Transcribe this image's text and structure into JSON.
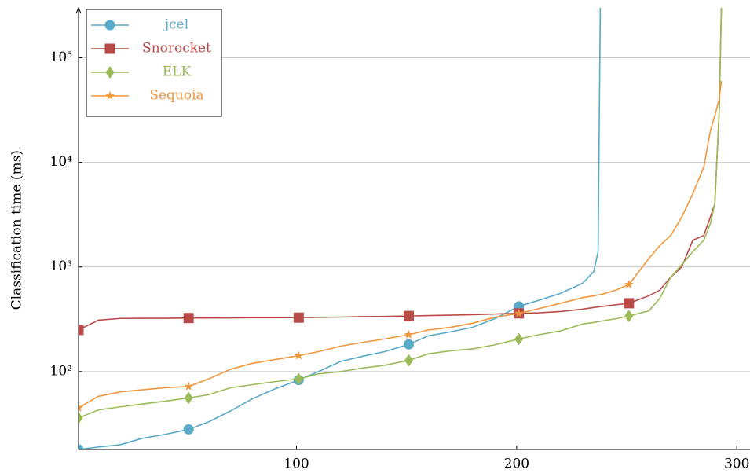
{
  "chart_data": {
    "type": "line",
    "ylabel": "Classification time (ms).",
    "log_y": true,
    "grid": true,
    "legend": "upper left",
    "xlim": [
      1,
      306
    ],
    "ylim": [
      18,
      300000
    ],
    "xticks": [
      100,
      200,
      300
    ],
    "yticks": [
      {
        "value": 100,
        "label": "10²"
      },
      {
        "value": 1000,
        "label": "10³"
      },
      {
        "value": 10000,
        "label": "10⁴"
      },
      {
        "value": 100000,
        "label": "10⁵"
      }
    ],
    "x": [
      1,
      10,
      20,
      30,
      40,
      51,
      60,
      70,
      80,
      90,
      101,
      110,
      120,
      130,
      140,
      151,
      160,
      170,
      180,
      190,
      201,
      210,
      220,
      230,
      235,
      237,
      238,
      239,
      245,
      251,
      260,
      265,
      270,
      275,
      280,
      285,
      288,
      290,
      292,
      293
    ],
    "series": [
      {
        "name": "jcel",
        "color": "#5aa9c7",
        "marker": "circle",
        "values": [
          18,
          19,
          20,
          23,
          25,
          28,
          33,
          42,
          55,
          68,
          83,
          100,
          125,
          140,
          155,
          182,
          220,
          240,
          265,
          320,
          420,
          480,
          560,
          700,
          900,
          1400,
          300000,
          null,
          null,
          null,
          null,
          null,
          null,
          null,
          null,
          null,
          null,
          null,
          null,
          null
        ]
      },
      {
        "name": "Snorocket",
        "color": "#b94a48",
        "marker": "square",
        "values": [
          250,
          310,
          322,
          323,
          323,
          325,
          325,
          326,
          327,
          327,
          328,
          330,
          332,
          335,
          337,
          340,
          343,
          346,
          350,
          355,
          360,
          365,
          375,
          395,
          410,
          415,
          418,
          420,
          435,
          450,
          530,
          600,
          800,
          1000,
          1800,
          2000,
          3000,
          4000,
          30000,
          300000
        ]
      },
      {
        "name": "ELK",
        "color": "#9bbb59",
        "marker": "diamond",
        "values": [
          36,
          43,
          46,
          49,
          52,
          56,
          60,
          70,
          75,
          80,
          85,
          95,
          100,
          108,
          115,
          128,
          148,
          158,
          165,
          180,
          205,
          225,
          245,
          285,
          295,
          300,
          303,
          305,
          320,
          340,
          380,
          500,
          800,
          1050,
          1400,
          1800,
          2600,
          4000,
          30000,
          300000
        ]
      },
      {
        "name": "Sequoia",
        "color": "#f0963c",
        "marker": "star",
        "values": [
          45,
          58,
          64,
          67,
          70,
          72,
          85,
          105,
          120,
          130,
          142,
          155,
          175,
          190,
          205,
          225,
          250,
          265,
          290,
          330,
          360,
          400,
          450,
          510,
          530,
          540,
          545,
          550,
          600,
          680,
          1200,
          1600,
          2000,
          3000,
          5000,
          9000,
          20000,
          28000,
          40000,
          60000
        ]
      }
    ]
  }
}
